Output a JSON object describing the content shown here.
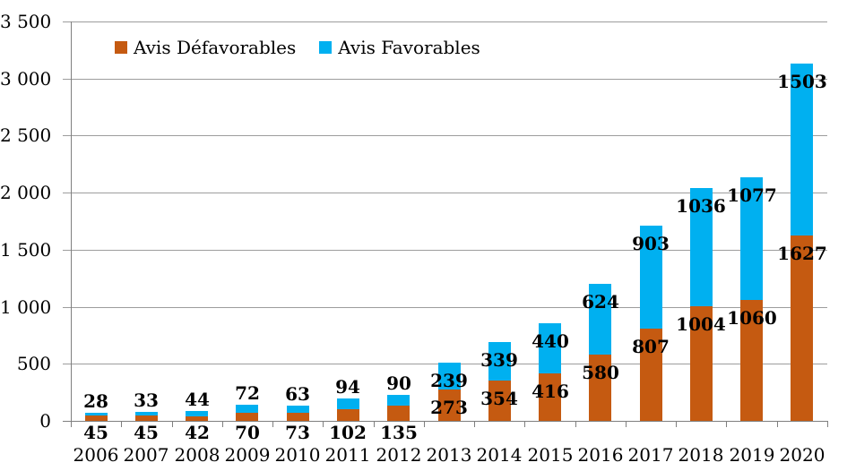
{
  "chart_data": {
    "type": "bar",
    "stacked": true,
    "title": "",
    "categories": [
      "2006",
      "2007",
      "2008",
      "2009",
      "2010",
      "2011",
      "2012",
      "2013",
      "2014",
      "2015",
      "2016",
      "2017",
      "2018",
      "2019",
      "2020"
    ],
    "series": [
      {
        "name": "Avis Défavorables",
        "color": "#C55A11",
        "values": [
          45,
          45,
          42,
          70,
          73,
          102,
          135,
          273,
          354,
          416,
          580,
          807,
          1004,
          1060,
          1627
        ]
      },
      {
        "name": "Avis Favorables",
        "color": "#00B0F0",
        "values": [
          28,
          33,
          44,
          72,
          63,
          94,
          90,
          239,
          339,
          440,
          624,
          903,
          1036,
          1077,
          1503
        ]
      }
    ],
    "xlabel": "",
    "ylabel": "",
    "ylim": [
      0,
      3500
    ],
    "ytick_step": 500,
    "ytick_labels": [
      "0",
      "500",
      "1 000",
      "1 500",
      "2 000",
      "2 500",
      "3 000",
      "3 500"
    ],
    "grid": true,
    "legend_position": "top-center"
  },
  "colors": {
    "defavorables": "#C55A11",
    "favorables": "#00B0F0",
    "gridline": "#9d9d9d",
    "axis": "#7f7f7f",
    "text": "#000000",
    "background": "#ffffff"
  }
}
